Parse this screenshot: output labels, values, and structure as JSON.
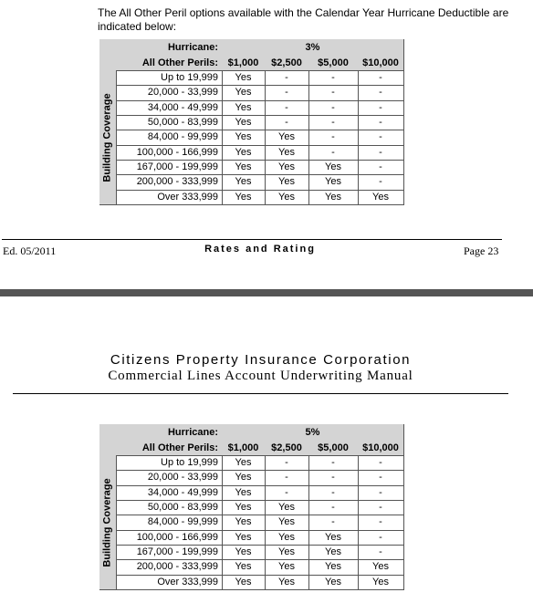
{
  "intro": "The All Other Peril options available with the Calendar Year Hurricane Deductible are indicated below:",
  "table_1": {
    "hurricane_label": "Hurricane:",
    "hurricane_value": "3%",
    "perils_label": "All Other Perils:",
    "columns": [
      "$1,000",
      "$2,500",
      "$5,000",
      "$10,000"
    ],
    "side_label": "Building Coverage",
    "rows": [
      [
        "Up to 19,999",
        "Yes",
        "-",
        "-",
        "-"
      ],
      [
        "20,000 - 33,999",
        "Yes",
        "-",
        "-",
        "-"
      ],
      [
        "34,000 - 49,999",
        "Yes",
        "-",
        "-",
        "-"
      ],
      [
        "50,000 - 83,999",
        "Yes",
        "-",
        "-",
        "-"
      ],
      [
        "84,000 - 99,999",
        "Yes",
        "Yes",
        "-",
        "-"
      ],
      [
        "100,000 - 166,999",
        "Yes",
        "Yes",
        "-",
        "-"
      ],
      [
        "167,000 - 199,999",
        "Yes",
        "Yes",
        "Yes",
        "-"
      ],
      [
        "200,000 - 333,999",
        "Yes",
        "Yes",
        "Yes",
        "-"
      ],
      [
        "Over 333,999",
        "Yes",
        "Yes",
        "Yes",
        "Yes"
      ]
    ]
  },
  "footer": {
    "edition": "Ed. 05/2011",
    "section": "Rates and Rating",
    "page": "Page 23"
  },
  "header": {
    "company": "Citizens Property Insurance Corporation",
    "manual": "Commercial Lines Account Underwriting Manual"
  },
  "table_2": {
    "hurricane_label": "Hurricane:",
    "hurricane_value": "5%",
    "perils_label": "All Other Perils:",
    "columns": [
      "$1,000",
      "$2,500",
      "$5,000",
      "$10,000"
    ],
    "side_label": "Building Coverage",
    "rows": [
      [
        "Up to 19,999",
        "Yes",
        "-",
        "-",
        "-"
      ],
      [
        "20,000 - 33,999",
        "Yes",
        "-",
        "-",
        "-"
      ],
      [
        "34,000 - 49,999",
        "Yes",
        "-",
        "-",
        "-"
      ],
      [
        "50,000 - 83,999",
        "Yes",
        "Yes",
        "-",
        "-"
      ],
      [
        "84,000 - 99,999",
        "Yes",
        "Yes",
        "-",
        "-"
      ],
      [
        "100,000 - 166,999",
        "Yes",
        "Yes",
        "Yes",
        "-"
      ],
      [
        "167,000 - 199,999",
        "Yes",
        "Yes",
        "Yes",
        "-"
      ],
      [
        "200,000 - 333,999",
        "Yes",
        "Yes",
        "Yes",
        "Yes"
      ],
      [
        "Over 333,999",
        "Yes",
        "Yes",
        "Yes",
        "Yes"
      ]
    ]
  }
}
